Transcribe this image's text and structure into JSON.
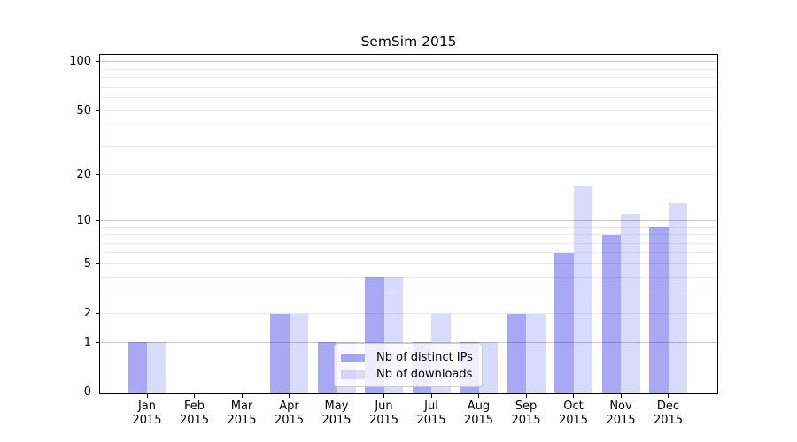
{
  "figure": {
    "background": "#ffffff"
  },
  "chart_data": {
    "type": "bar",
    "title": "SemSim 2015",
    "xlabel": "",
    "ylabel": "",
    "yscale": "log1p",
    "ylim": [
      0,
      112
    ],
    "yticks": [
      0,
      1,
      2,
      5,
      10,
      20,
      50,
      100
    ],
    "grid": {
      "orientation": "horizontal",
      "major": [
        1,
        10,
        100
      ],
      "minor": [
        2,
        3,
        4,
        5,
        6,
        7,
        8,
        9,
        20,
        30,
        40,
        50,
        60,
        70,
        80,
        90
      ],
      "major_color": "#c9c9c9",
      "minor_color": "#eaeaea"
    },
    "categories": [
      {
        "month": "Jan",
        "year": "2015"
      },
      {
        "month": "Feb",
        "year": "2015"
      },
      {
        "month": "Mar",
        "year": "2015"
      },
      {
        "month": "Apr",
        "year": "2015"
      },
      {
        "month": "May",
        "year": "2015"
      },
      {
        "month": "Jun",
        "year": "2015"
      },
      {
        "month": "Jul",
        "year": "2015"
      },
      {
        "month": "Aug",
        "year": "2015"
      },
      {
        "month": "Sep",
        "year": "2015"
      },
      {
        "month": "Oct",
        "year": "2015"
      },
      {
        "month": "Nov",
        "year": "2015"
      },
      {
        "month": "Dec",
        "year": "2015"
      }
    ],
    "series": [
      {
        "name": "Nb of distinct IPs",
        "color": "rgba(0,0,225,0.34)",
        "flat_color": "#a8a8f5",
        "values": [
          1,
          0,
          0,
          2,
          1,
          4,
          1,
          1,
          2,
          6,
          8,
          9
        ]
      },
      {
        "name": "Nb of downloads",
        "color": "rgba(0,0,225,0.145)",
        "flat_color": "#dadafa",
        "values": [
          1,
          0,
          0,
          2,
          1,
          4,
          2,
          1,
          2,
          17,
          11,
          13
        ]
      }
    ],
    "legend_position": "lower center"
  }
}
